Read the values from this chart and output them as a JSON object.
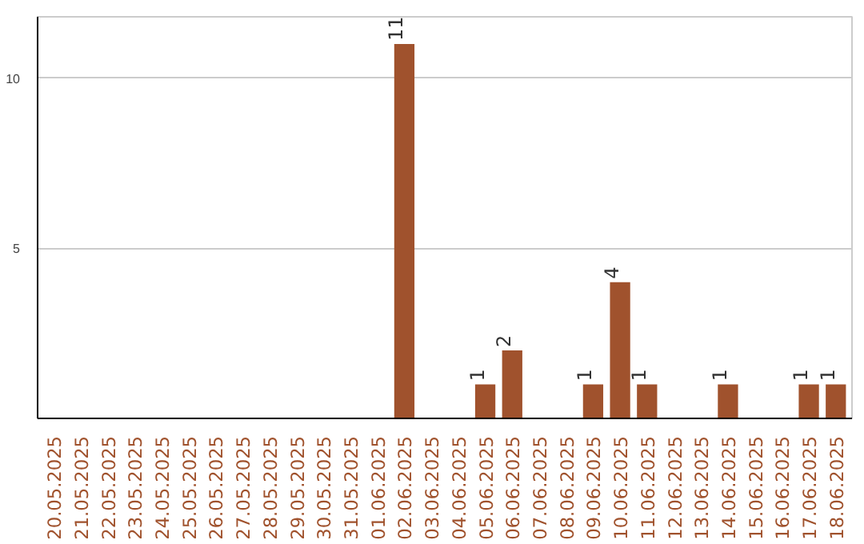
{
  "chart_data": {
    "type": "bar",
    "categories": [
      "20.05.2025",
      "21.05.2025",
      "22.05.2025",
      "23.05.2025",
      "24.05.2025",
      "25.05.2025",
      "26.05.2025",
      "27.05.2025",
      "28.05.2025",
      "29.05.2025",
      "30.05.2025",
      "31.05.2025",
      "01.06.2025",
      "02.06.2025",
      "03.06.2025",
      "04.06.2025",
      "05.06.2025",
      "06.06.2025",
      "07.06.2025",
      "08.06.2025",
      "09.06.2025",
      "10.06.2025",
      "11.06.2025",
      "12.06.2025",
      "13.06.2025",
      "14.06.2025",
      "15.06.2025",
      "16.06.2025",
      "17.06.2025",
      "18.06.2025"
    ],
    "values": [
      0,
      0,
      0,
      0,
      0,
      0,
      0,
      0,
      0,
      0,
      0,
      0,
      0,
      11,
      0,
      0,
      1,
      2,
      0,
      0,
      1,
      4,
      1,
      0,
      0,
      1,
      0,
      0,
      1,
      1
    ],
    "value_labels": [
      null,
      null,
      null,
      null,
      null,
      null,
      null,
      null,
      null,
      null,
      null,
      null,
      null,
      "11",
      null,
      null,
      "1",
      "2",
      null,
      null,
      "1",
      "4",
      "1",
      null,
      null,
      "1",
      null,
      null,
      "1",
      "1"
    ],
    "color": "#a0522d",
    "ylim": [
      0,
      11.8
    ],
    "yticks": [
      5,
      10
    ],
    "grid": "y"
  }
}
